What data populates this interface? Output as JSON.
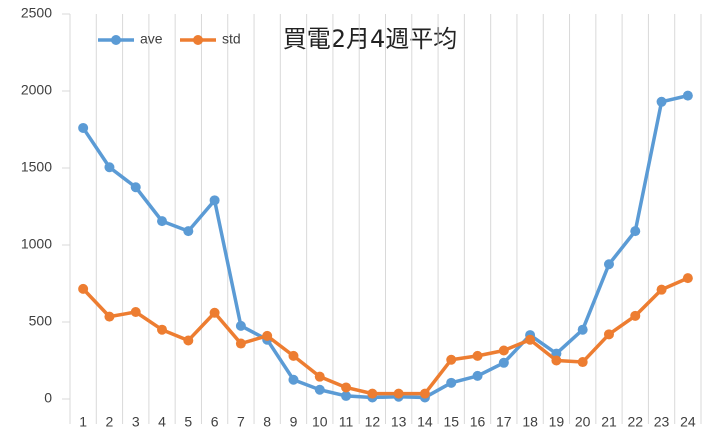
{
  "chart_data": {
    "type": "line",
    "title": "買電2月4週平均",
    "categories": [
      "1",
      "2",
      "3",
      "4",
      "5",
      "6",
      "7",
      "8",
      "9",
      "10",
      "11",
      "12",
      "13",
      "14",
      "15",
      "16",
      "17",
      "18",
      "19",
      "20",
      "21",
      "22",
      "23",
      "24"
    ],
    "series": [
      {
        "name": "ave",
        "color": "#5b9bd5",
        "values": [
          1760,
          1505,
          1375,
          1155,
          1090,
          1290,
          475,
          385,
          125,
          60,
          20,
          10,
          15,
          10,
          105,
          150,
          235,
          415,
          295,
          450,
          875,
          1090,
          1930,
          1970
        ]
      },
      {
        "name": "std",
        "color": "#ed7d31",
        "values": [
          715,
          535,
          565,
          450,
          380,
          560,
          360,
          410,
          280,
          145,
          75,
          35,
          35,
          35,
          255,
          280,
          315,
          385,
          250,
          240,
          420,
          540,
          710,
          785
        ]
      }
    ],
    "ylim": [
      0,
      2500
    ],
    "yticks": [
      0,
      500,
      1000,
      1500,
      2000,
      2500
    ],
    "grid": "vertical",
    "legend": "top-left"
  }
}
